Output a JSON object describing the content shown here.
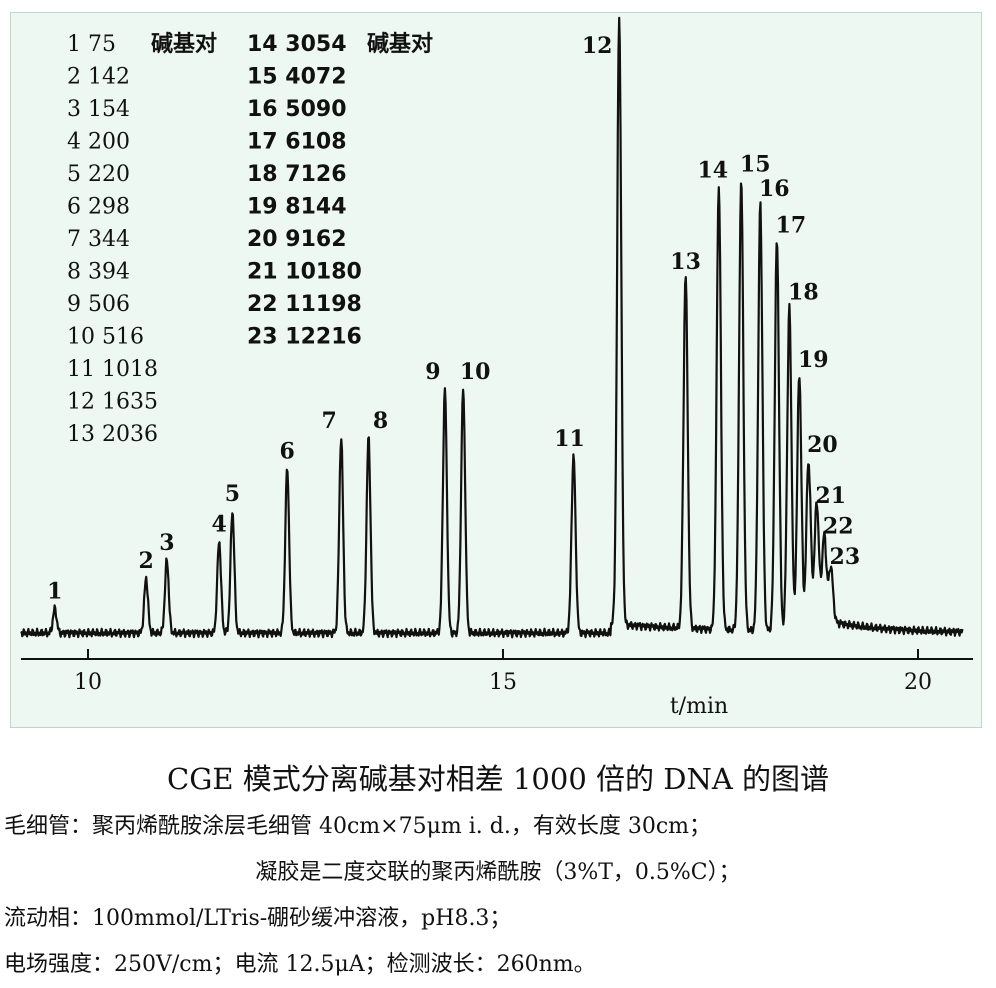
{
  "chart_data": {
    "type": "line",
    "xlabel": "t/min",
    "x_ticks": [
      10,
      15,
      20
    ],
    "xlim": [
      9.2,
      20.5
    ],
    "legend_entries": [
      {
        "peak": "1",
        "bp": "75",
        "unit": "碱基对"
      },
      {
        "peak": "2",
        "bp": "142",
        "unit": ""
      },
      {
        "peak": "3",
        "bp": "154",
        "unit": ""
      },
      {
        "peak": "4",
        "bp": "200",
        "unit": ""
      },
      {
        "peak": "5",
        "bp": "220",
        "unit": ""
      },
      {
        "peak": "6",
        "bp": "298",
        "unit": ""
      },
      {
        "peak": "7",
        "bp": "344",
        "unit": ""
      },
      {
        "peak": "8",
        "bp": "394",
        "unit": ""
      },
      {
        "peak": "9",
        "bp": "506",
        "unit": ""
      },
      {
        "peak": "10",
        "bp": "516",
        "unit": ""
      },
      {
        "peak": "11",
        "bp": "1018",
        "unit": ""
      },
      {
        "peak": "12",
        "bp": "1635",
        "unit": ""
      },
      {
        "peak": "13",
        "bp": "2036",
        "unit": ""
      },
      {
        "peak": "14",
        "bp": "3054",
        "unit": "碱基对"
      },
      {
        "peak": "15",
        "bp": "4072",
        "unit": ""
      },
      {
        "peak": "16",
        "bp": "5090",
        "unit": ""
      },
      {
        "peak": "17",
        "bp": "6108",
        "unit": ""
      },
      {
        "peak": "18",
        "bp": "7126",
        "unit": ""
      },
      {
        "peak": "19",
        "bp": "8144",
        "unit": ""
      },
      {
        "peak": "20",
        "bp": "9162",
        "unit": ""
      },
      {
        "peak": "21",
        "bp": "10180",
        "unit": ""
      },
      {
        "peak": "22",
        "bp": "11198",
        "unit": ""
      },
      {
        "peak": "23",
        "bp": "12216",
        "unit": ""
      }
    ],
    "peaks": [
      {
        "label": "1",
        "t": 9.6,
        "h": 0.04
      },
      {
        "label": "2",
        "t": 10.7,
        "h": 0.09
      },
      {
        "label": "3",
        "t": 10.95,
        "h": 0.12
      },
      {
        "label": "4",
        "t": 11.58,
        "h": 0.15
      },
      {
        "label": "5",
        "t": 11.74,
        "h": 0.2
      },
      {
        "label": "6",
        "t": 12.4,
        "h": 0.27
      },
      {
        "label": "7",
        "t": 13.05,
        "h": 0.32
      },
      {
        "label": "8",
        "t": 13.38,
        "h": 0.32
      },
      {
        "label": "9",
        "t": 14.3,
        "h": 0.4
      },
      {
        "label": "10",
        "t": 14.52,
        "h": 0.4
      },
      {
        "label": "11",
        "t": 15.85,
        "h": 0.29
      },
      {
        "label": "12",
        "t": 16.4,
        "h": 1.0
      },
      {
        "label": "13",
        "t": 17.2,
        "h": 0.58
      },
      {
        "label": "14",
        "t": 17.6,
        "h": 0.73
      },
      {
        "label": "15",
        "t": 17.87,
        "h": 0.74
      },
      {
        "label": "16",
        "t": 18.1,
        "h": 0.7
      },
      {
        "label": "17",
        "t": 18.3,
        "h": 0.64
      },
      {
        "label": "18",
        "t": 18.45,
        "h": 0.53
      },
      {
        "label": "19",
        "t": 18.57,
        "h": 0.42
      },
      {
        "label": "20",
        "t": 18.68,
        "h": 0.28
      },
      {
        "label": "21",
        "t": 18.78,
        "h": 0.19
      },
      {
        "label": "22",
        "t": 18.87,
        "h": 0.14
      },
      {
        "label": "23",
        "t": 18.95,
        "h": 0.09
      }
    ]
  },
  "caption": {
    "title": "CGE 模式分离碱基对相差 1000 倍的 DNA 的图谱",
    "line1": "毛细管：聚丙烯酰胺涂层毛细管 40cm×75μm i. d.，有效长度 30cm；",
    "line2": "凝胶是二度交联的聚丙烯酰胺（3%T，0.5%C）；",
    "line3": "流动相：100mmol/LTris-硼砂缓冲溶液，pH8.3；",
    "line4": "电场强度：250V/cm；电流 12.5μA；检测波长：260nm。"
  },
  "colors": {
    "panel_bg": "#eef8f2",
    "trace": "#111111"
  }
}
